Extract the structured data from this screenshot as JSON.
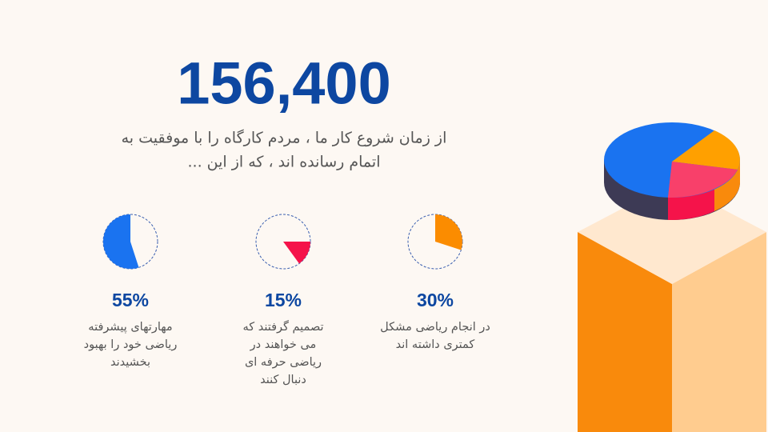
{
  "headline": "156,400",
  "intro": [
    "از زمان شروع کار ما ، مردم کارگاه را با موفقیت به",
    "اتمام رسانده اند ، که از این ..."
  ],
  "stats": [
    {
      "value": 55,
      "value_label": "55%",
      "color": "#1a73f0",
      "lines": [
        "مهارتهای پیشرفته",
        "ریاضی خود را بهبود",
        "بخشیدند"
      ]
    },
    {
      "value": 15,
      "value_label": "15%",
      "color": "#f5134a",
      "lines": [
        "تصمیم گرفتند که",
        "می خواهند در",
        "ریاضی حرفه ای",
        "دنبال کنند"
      ]
    },
    {
      "value": 30,
      "value_label": "30%",
      "color": "#fb8c00",
      "lines": [
        "در انجام ریاضی مشکل",
        "کمتری داشته اند"
      ]
    }
  ]
}
